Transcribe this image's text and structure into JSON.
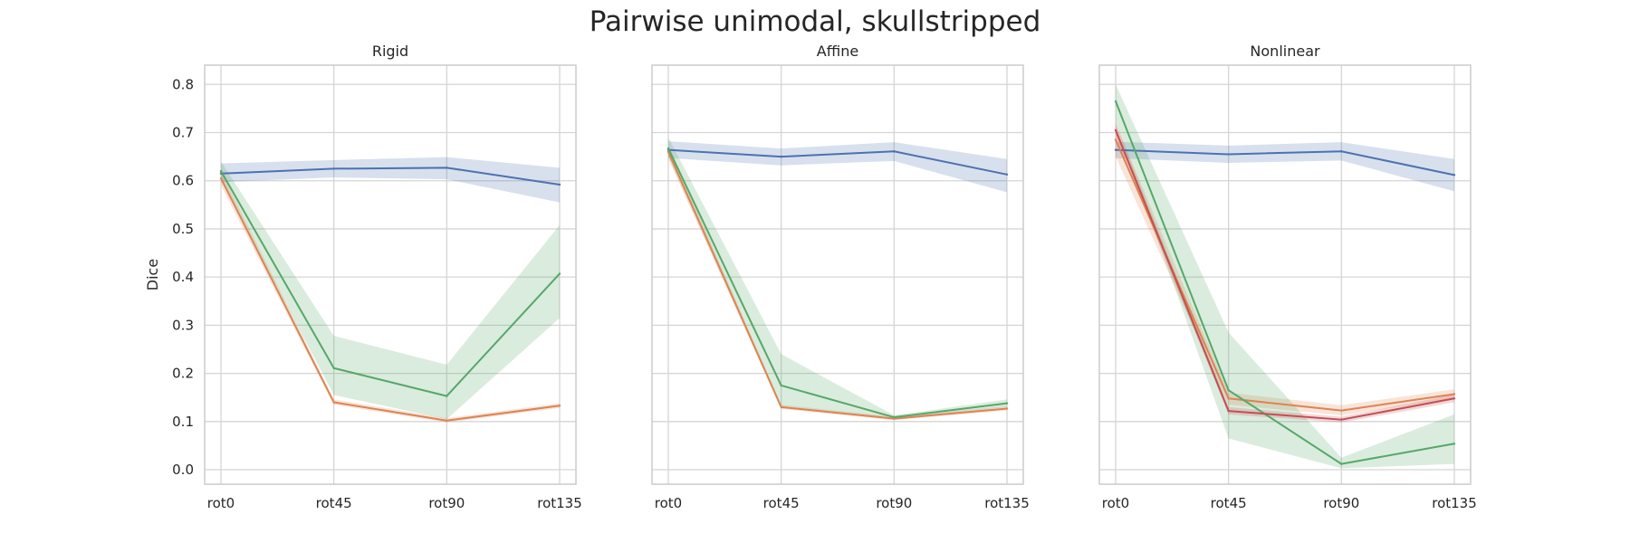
{
  "figure": {
    "title": "Pairwise unimodal, skullstripped"
  },
  "chart_data": {
    "type": "line",
    "title": "Pairwise unimodal, skullstripped",
    "ylabel": "Dice",
    "ylim": [
      -0.03,
      0.84
    ],
    "yticks": [
      0.0,
      0.1,
      0.2,
      0.3,
      0.4,
      0.5,
      0.6,
      0.7,
      0.8
    ],
    "ytick_labels": [
      "0.0",
      "0.1",
      "0.2",
      "0.3",
      "0.4",
      "0.5",
      "0.6",
      "0.7",
      "0.8"
    ],
    "categories": [
      "rot0",
      "rot45",
      "rot90",
      "rot135"
    ],
    "grid": true,
    "shared_y": true,
    "colors": {
      "blue": "#4c72b0",
      "orange": "#dd8452",
      "green": "#55a868",
      "red": "#c44e52"
    },
    "panels": [
      {
        "title": "Rigid",
        "series": [
          {
            "color": "blue",
            "values": [
              0.615,
              0.625,
              0.627,
              0.592
            ],
            "lower": [
              0.597,
              0.607,
              0.603,
              0.555
            ],
            "upper": [
              0.636,
              0.643,
              0.649,
              0.627
            ]
          },
          {
            "color": "orange",
            "values": [
              0.605,
              0.14,
              0.102,
              0.133
            ],
            "lower": [
              0.59,
              0.135,
              0.098,
              0.128
            ],
            "upper": [
              0.62,
              0.146,
              0.107,
              0.138
            ]
          },
          {
            "color": "green",
            "values": [
              0.62,
              0.211,
              0.153,
              0.407
            ],
            "lower": [
              0.6,
              0.155,
              0.105,
              0.315
            ],
            "upper": [
              0.64,
              0.278,
              0.218,
              0.508
            ]
          }
        ]
      },
      {
        "title": "Affine",
        "series": [
          {
            "color": "blue",
            "values": [
              0.664,
              0.65,
              0.661,
              0.613
            ],
            "lower": [
              0.647,
              0.632,
              0.641,
              0.576
            ],
            "upper": [
              0.682,
              0.667,
              0.68,
              0.645
            ]
          },
          {
            "color": "orange",
            "values": [
              0.66,
              0.13,
              0.106,
              0.127
            ],
            "lower": [
              0.645,
              0.126,
              0.103,
              0.123
            ],
            "upper": [
              0.675,
              0.135,
              0.11,
              0.132
            ]
          },
          {
            "color": "green",
            "values": [
              0.667,
              0.175,
              0.109,
              0.138
            ],
            "lower": [
              0.65,
              0.13,
              0.105,
              0.13
            ],
            "upper": [
              0.69,
              0.24,
              0.113,
              0.146
            ]
          }
        ]
      },
      {
        "title": "Nonlinear",
        "series": [
          {
            "color": "blue",
            "values": [
              0.664,
              0.655,
              0.661,
              0.612
            ],
            "lower": [
              0.647,
              0.637,
              0.642,
              0.578
            ],
            "upper": [
              0.681,
              0.673,
              0.68,
              0.645
            ]
          },
          {
            "color": "orange",
            "values": [
              0.685,
              0.148,
              0.123,
              0.157
            ],
            "lower": [
              0.65,
              0.135,
              0.113,
              0.148
            ],
            "upper": [
              0.72,
              0.16,
              0.134,
              0.167
            ]
          },
          {
            "color": "green",
            "values": [
              0.765,
              0.165,
              0.012,
              0.054
            ],
            "lower": [
              0.72,
              0.065,
              0.003,
              0.012
            ],
            "upper": [
              0.8,
              0.285,
              0.025,
              0.115
            ]
          },
          {
            "color": "red",
            "values": [
              0.705,
              0.122,
              0.104,
              0.148
            ],
            "lower": [
              0.69,
              0.115,
              0.098,
              0.14
            ],
            "upper": [
              0.718,
              0.13,
              0.11,
              0.156
            ]
          }
        ]
      }
    ]
  }
}
